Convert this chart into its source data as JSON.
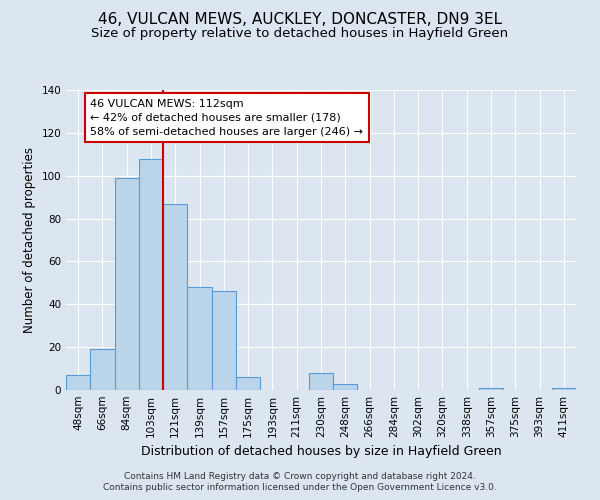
{
  "title": "46, VULCAN MEWS, AUCKLEY, DONCASTER, DN9 3EL",
  "subtitle": "Size of property relative to detached houses in Hayfield Green",
  "xlabel": "Distribution of detached houses by size in Hayfield Green",
  "ylabel": "Number of detached properties",
  "bin_labels": [
    "48sqm",
    "66sqm",
    "84sqm",
    "103sqm",
    "121sqm",
    "139sqm",
    "157sqm",
    "175sqm",
    "193sqm",
    "211sqm",
    "230sqm",
    "248sqm",
    "266sqm",
    "284sqm",
    "302sqm",
    "320sqm",
    "338sqm",
    "357sqm",
    "375sqm",
    "393sqm",
    "411sqm"
  ],
  "bar_values": [
    7,
    19,
    99,
    108,
    87,
    48,
    46,
    6,
    0,
    0,
    8,
    3,
    0,
    0,
    0,
    0,
    0,
    1,
    0,
    0,
    1
  ],
  "bar_color": "#bad4ea",
  "bar_edge_color": "#5b9bd5",
  "background_color": "#dce6f1",
  "annotation_title": "46 VULCAN MEWS: 112sqm",
  "annotation_line1": "← 42% of detached houses are smaller (178)",
  "annotation_line2": "58% of semi-detached houses are larger (246) →",
  "annotation_box_color": "#ffffff",
  "annotation_border_color": "#cc0000",
  "vline_pos": 3.5,
  "ylim": [
    0,
    140
  ],
  "yticks": [
    0,
    20,
    40,
    60,
    80,
    100,
    120,
    140
  ],
  "footnote1": "Contains HM Land Registry data © Crown copyright and database right 2024.",
  "footnote2": "Contains public sector information licensed under the Open Government Licence v3.0.",
  "title_fontsize": 11,
  "subtitle_fontsize": 9.5,
  "xlabel_fontsize": 9,
  "ylabel_fontsize": 8.5,
  "tick_fontsize": 7.5,
  "footnote_fontsize": 6.5
}
